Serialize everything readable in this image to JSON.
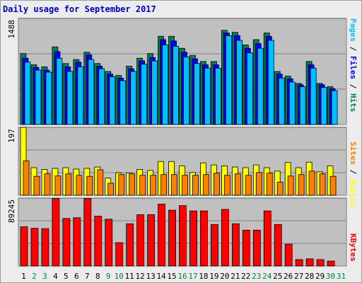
{
  "title": "Daily usage for September 2017",
  "chart_data": {
    "type": "bar",
    "title": "Daily usage for September 2017",
    "days": [
      "1",
      "2",
      "3",
      "4",
      "5",
      "6",
      "7",
      "8",
      "9",
      "10",
      "11",
      "12",
      "13",
      "14",
      "15",
      "16",
      "17",
      "18",
      "19",
      "20",
      "21",
      "22",
      "23",
      "24",
      "25",
      "26",
      "27",
      "28",
      "29",
      "30",
      "31"
    ],
    "weekend_days": [
      "2",
      "3",
      "9",
      "10",
      "16",
      "17",
      "23",
      "24",
      "30",
      "31"
    ],
    "panels": [
      {
        "name": "hits-files-pages",
        "max_label": "1488",
        "max": 1600,
        "series": [
          {
            "name": "Hits",
            "color": "#00805c",
            "values": [
              1070,
              900,
              870,
              1170,
              920,
              980,
              1090,
              920,
              800,
              740,
              880,
              1000,
              1070,
              1330,
              1330,
              1150,
              1040,
              950,
              950,
              1420,
              1390,
              1200,
              1280,
              1380,
              800,
              730,
              620,
              950,
              620,
              570,
              0
            ]
          },
          {
            "name": "Files",
            "color": "#0000ff",
            "values": [
              1000,
              860,
              820,
              1100,
              870,
              940,
              1050,
              880,
              760,
              700,
              840,
              960,
              1010,
              1280,
              1260,
              1090,
              990,
              900,
              900,
              1380,
              1340,
              1150,
              1220,
              1330,
              760,
              690,
              600,
              900,
              600,
              540,
              0
            ]
          },
          {
            "name": "Pages",
            "color": "#00c0ff",
            "values": [
              940,
              820,
              790,
              1000,
              800,
              870,
              980,
              840,
              720,
              660,
              800,
              910,
              960,
              1200,
              1180,
              1020,
              920,
              850,
              850,
              1340,
              1270,
              1080,
              1150,
              1270,
              700,
              640,
              570,
              850,
              560,
              510,
              0
            ]
          }
        ],
        "legend": [
          "Pages",
          "Files",
          "Hits"
        ]
      },
      {
        "name": "visits-sites",
        "max_label": "197",
        "max": 197,
        "series": [
          {
            "name": "Visits",
            "color": "#ffff00",
            "values": [
              197,
              80,
              75,
              78,
              80,
              76,
              78,
              82,
              50,
              65,
              65,
              75,
              72,
              98,
              98,
              85,
              66,
              94,
              88,
              85,
              82,
              80,
              88,
              80,
              70,
              95,
              80,
              96,
              68,
              85,
              0
            ]
          },
          {
            "name": "Sites",
            "color": "#ff8000",
            "values": [
              100,
              55,
              62,
              56,
              62,
              58,
              55,
              74,
              35,
              60,
              62,
              58,
              58,
              60,
              60,
              58,
              58,
              60,
              64,
              58,
              62,
              58,
              66,
              64,
              38,
              56,
              60,
              70,
              62,
              55,
              0
            ]
          }
        ],
        "legend": [
          "Sites",
          "Visits"
        ]
      },
      {
        "name": "kbytes",
        "max_label": "89245",
        "max": 90000,
        "series": [
          {
            "name": "KBytes",
            "color": "#ff0000",
            "values": [
              52000,
              50000,
              49500,
              89245,
              63000,
              64000,
              89245,
              66000,
              62000,
              31000,
              56000,
              68000,
              68000,
              82000,
              74000,
              80000,
              73000,
              73000,
              55000,
              75000,
              56000,
              47500,
              47500,
              73000,
              55000,
              29000,
              8500,
              9500,
              8500,
              6500,
              0
            ]
          }
        ],
        "legend": [
          "KBytes"
        ]
      }
    ]
  },
  "colors": {
    "panel_bg": "#c0c0c0",
    "page_bg": "#ececec",
    "weekday_label": "#000000",
    "weekend_label": "#008040"
  }
}
